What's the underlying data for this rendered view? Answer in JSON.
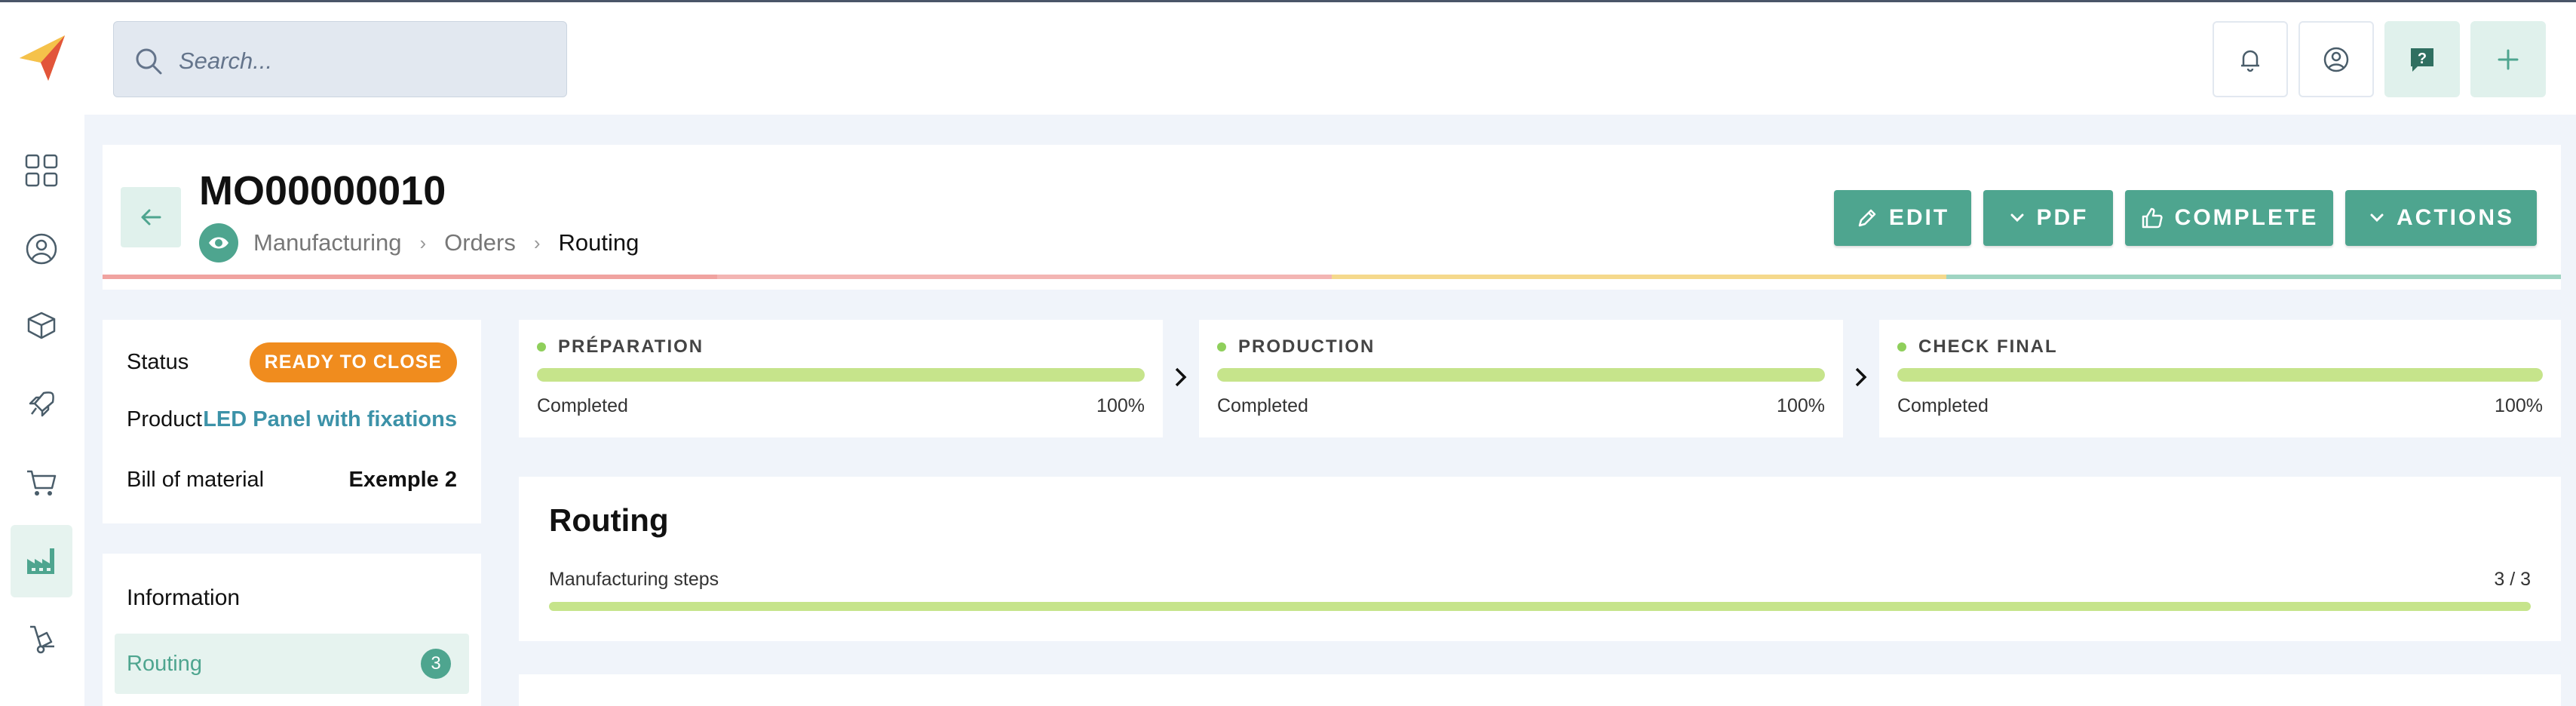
{
  "search": {
    "placeholder": "Search..."
  },
  "order": {
    "title": "MO00000010",
    "breadcrumb": [
      "Manufacturing",
      "Orders",
      "Routing"
    ]
  },
  "actions": {
    "edit": "EDIT",
    "pdf": "PDF",
    "complete": "COMPLETE",
    "actions": "ACTIONS"
  },
  "info": {
    "status_label": "Status",
    "status_value": "READY TO CLOSE",
    "product_label": "Product",
    "product_value": "LED Panel with fixations",
    "bom_label": "Bill of material",
    "bom_value": "Exemple 2"
  },
  "menu": {
    "title": "Information",
    "items": [
      {
        "label": "Routing",
        "count": "3"
      }
    ]
  },
  "steps": [
    {
      "name": "PRÉPARATION",
      "status": "Completed",
      "progress": "100%",
      "progress_value": 1.0
    },
    {
      "name": "PRODUCTION",
      "status": "Completed",
      "progress": "100%",
      "progress_value": 1.0
    },
    {
      "name": "CHECK FINAL",
      "status": "Completed",
      "progress": "100%",
      "progress_value": 1.0
    }
  ],
  "routing": {
    "title": "Routing",
    "subtitle": "Manufacturing steps",
    "count": "3 / 3",
    "progress_value": 1.0
  },
  "colors": {
    "accent": "#4ea58f",
    "status_badge": "#f08c1e",
    "progress_fill": "#c6e48b",
    "product_link": "#3c92a8",
    "stage_line": [
      "#f0a3a0",
      "#f0a3a0",
      "#f5d98c",
      "#9fd4c2"
    ]
  },
  "icons": {
    "topbar": [
      "bell-icon",
      "user-circle-icon",
      "help-chat-icon",
      "plus-icon"
    ],
    "sidebar": [
      "dashboard-icon",
      "contacts-icon",
      "products-icon",
      "projects-icon",
      "purchase-cart-icon",
      "factory-icon",
      "inventory-icon"
    ]
  }
}
